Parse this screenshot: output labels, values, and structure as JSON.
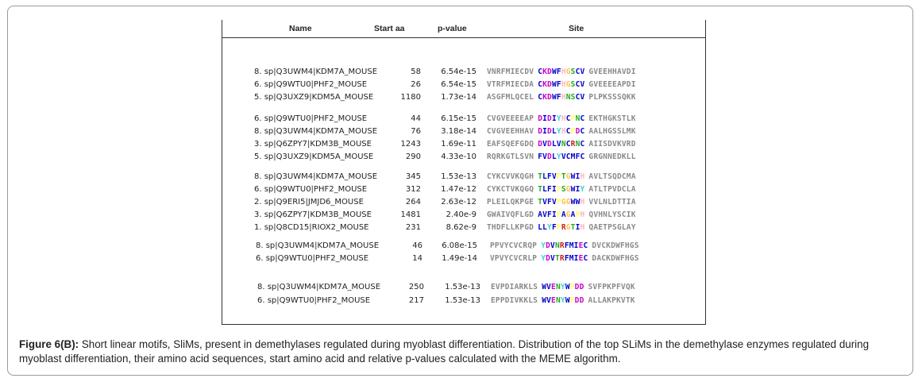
{
  "header": {
    "name": "Name",
    "start": "Start aa",
    "pvalue": "p-value",
    "site": "Site"
  },
  "colors": {
    "C": "#0000cc",
    "K": "#cc00cc",
    "D": "#cc00cc",
    "W": "#0000cc",
    "F": "#0000cc",
    "H": "#ffb6c1",
    "G": "#ffc04d",
    "S": "#22aa22",
    "V": "#0000cc",
    "N": "#22aa22",
    "I": "#0000cc",
    "L": "#0000cc",
    "Y": "#40d0d0",
    "P": "#ffff66",
    "T": "#22aa22",
    "R": "#cc2222",
    "A": "#0000cc",
    "M": "#0000cc",
    "E": "#cc00cc",
    "Q": "#22aa22",
    "flank": "#8a8a8a"
  },
  "rows": [
    {
      "name": "8. sp|Q3UWM4|KDM7A_MOUSE",
      "start": "58",
      "p": "6.54e-15",
      "left": "VNRFMIECDV",
      "site": "CKDWFHGSCV",
      "right": "GVEEHHAVDI"
    },
    {
      "name": "6. sp|Q9WTU0|PHF2_MOUSE",
      "start": "26",
      "p": "6.54e-15",
      "left": "VTRFMIECDA",
      "site": "CKDWFHGSCV",
      "right": "GVEEEEAPDI"
    },
    {
      "name": "5. sp|Q3UXZ9|KDM5A_MOUSE",
      "start": "1180",
      "p": "1.73e-14",
      "left": "ASGFMLQCEL",
      "site": "CKDWFHNSCV",
      "right": "PLPKSSSQKK"
    },
    {
      "name": "6. sp|Q9WTU0|PHF2_MOUSE",
      "start": "44",
      "p": "6.15e-15",
      "left": "CVGVEEEEAP",
      "site": "DIDIYHCPNC",
      "right": "EKTHGKSTLK"
    },
    {
      "name": "8. sp|Q3UWM4|KDM7A_MOUSE",
      "start": "76",
      "p": "3.18e-14",
      "left": "CVGVEEHHAV",
      "site": "DIDLYHCPDC",
      "right": "AALHGSSLMK"
    },
    {
      "name": "3. sp|Q6ZPY7|KDM3B_MOUSE",
      "start": "1243",
      "p": "1.69e-11",
      "left": "EAFSQEFGDQ",
      "site": "DVDLVNCRNC",
      "right": "AIISDVKVRD"
    },
    {
      "name": "5. sp|Q3UXZ9|KDM5A_MOUSE",
      "start": "290",
      "p": "4.33e-10",
      "left": "RQRKGTLSVN",
      "site": "FVDLYVCMFC",
      "right": "GRGNNEDKLL"
    },
    {
      "name": "8. sp|Q3UWM4|KDM7A_MOUSE",
      "start": "345",
      "p": "1.53e-13",
      "left": "CYKCVVKQGH",
      "site": "TLFVPTGWIH",
      "right": "AVLTSQDCMA"
    },
    {
      "name": "6. sp|Q9WTU0|PHF2_MOUSE",
      "start": "312",
      "p": "1.47e-12",
      "left": "CYKCTVKQGQ",
      "site": "TLFIPSGWIY",
      "right": "ATLTPVDCLA"
    },
    {
      "name": "2. sp|Q9ERI5|JMJD6_MOUSE",
      "start": "264",
      "p": "2.63e-12",
      "left": "PLEILQKPGE",
      "site": "TVFVPGGWWH",
      "right": "VVLNLDTTIA"
    },
    {
      "name": "3. sp|Q6ZPY7|KDM3B_MOUSE",
      "start": "1481",
      "p": "2.40e-9",
      "left": "GWAIVQFLGD",
      "site": "AVFIPAGAPH",
      "right": "QVHNLYSCIK"
    },
    {
      "name": "1. sp|Q8CD15|RIOX2_MOUSE",
      "start": "231",
      "p": "8.62e-9",
      "left": "THDFLLKPGD",
      "site": "LLYFPRGTIH",
      "right": "QAETPSGLAY"
    },
    {
      "name": "8. sp|Q3UWM4|KDM7A_MOUSE",
      "start": "46",
      "p": "6.08e-15",
      "left": "PPVYCVCRQP",
      "site": "YDVNRFMIEC",
      "right": "DVCKDWFHGS"
    },
    {
      "name": "6. sp|Q9WTU0|PHF2_MOUSE",
      "start": "14",
      "p": "1.49e-14",
      "left": "VPVYCVCRLP",
      "site": "YDVTRFMIEC",
      "right": "DACKDWFHGS"
    },
    {
      "name": "8. sp|Q3UWM4|KDM7A_MOUSE",
      "start": "250",
      "p": "1.53e-13",
      "left": "EVPDIARKLS",
      "site": "WVENYWPDD",
      "right": "SVFPKPFVQK"
    },
    {
      "name": "6. sp|Q9WTU0|PHF2_MOUSE",
      "start": "217",
      "p": "1.53e-13",
      "left": "EPPDIVKKLS",
      "site": "WVENYWPDD",
      "right": "ALLAKPKVTK"
    }
  ],
  "caption": {
    "label": "Figure 6(B):",
    "text": " Short linear motifs, SliMs, present in demethylases regulated during myoblast differentiation. Distribution of the top SLiMs in the demethylase enzymes regulated during myoblast differentiation, their amino acid sequences, start amino acid and relative p-values calculated with the MEME algorithm."
  }
}
